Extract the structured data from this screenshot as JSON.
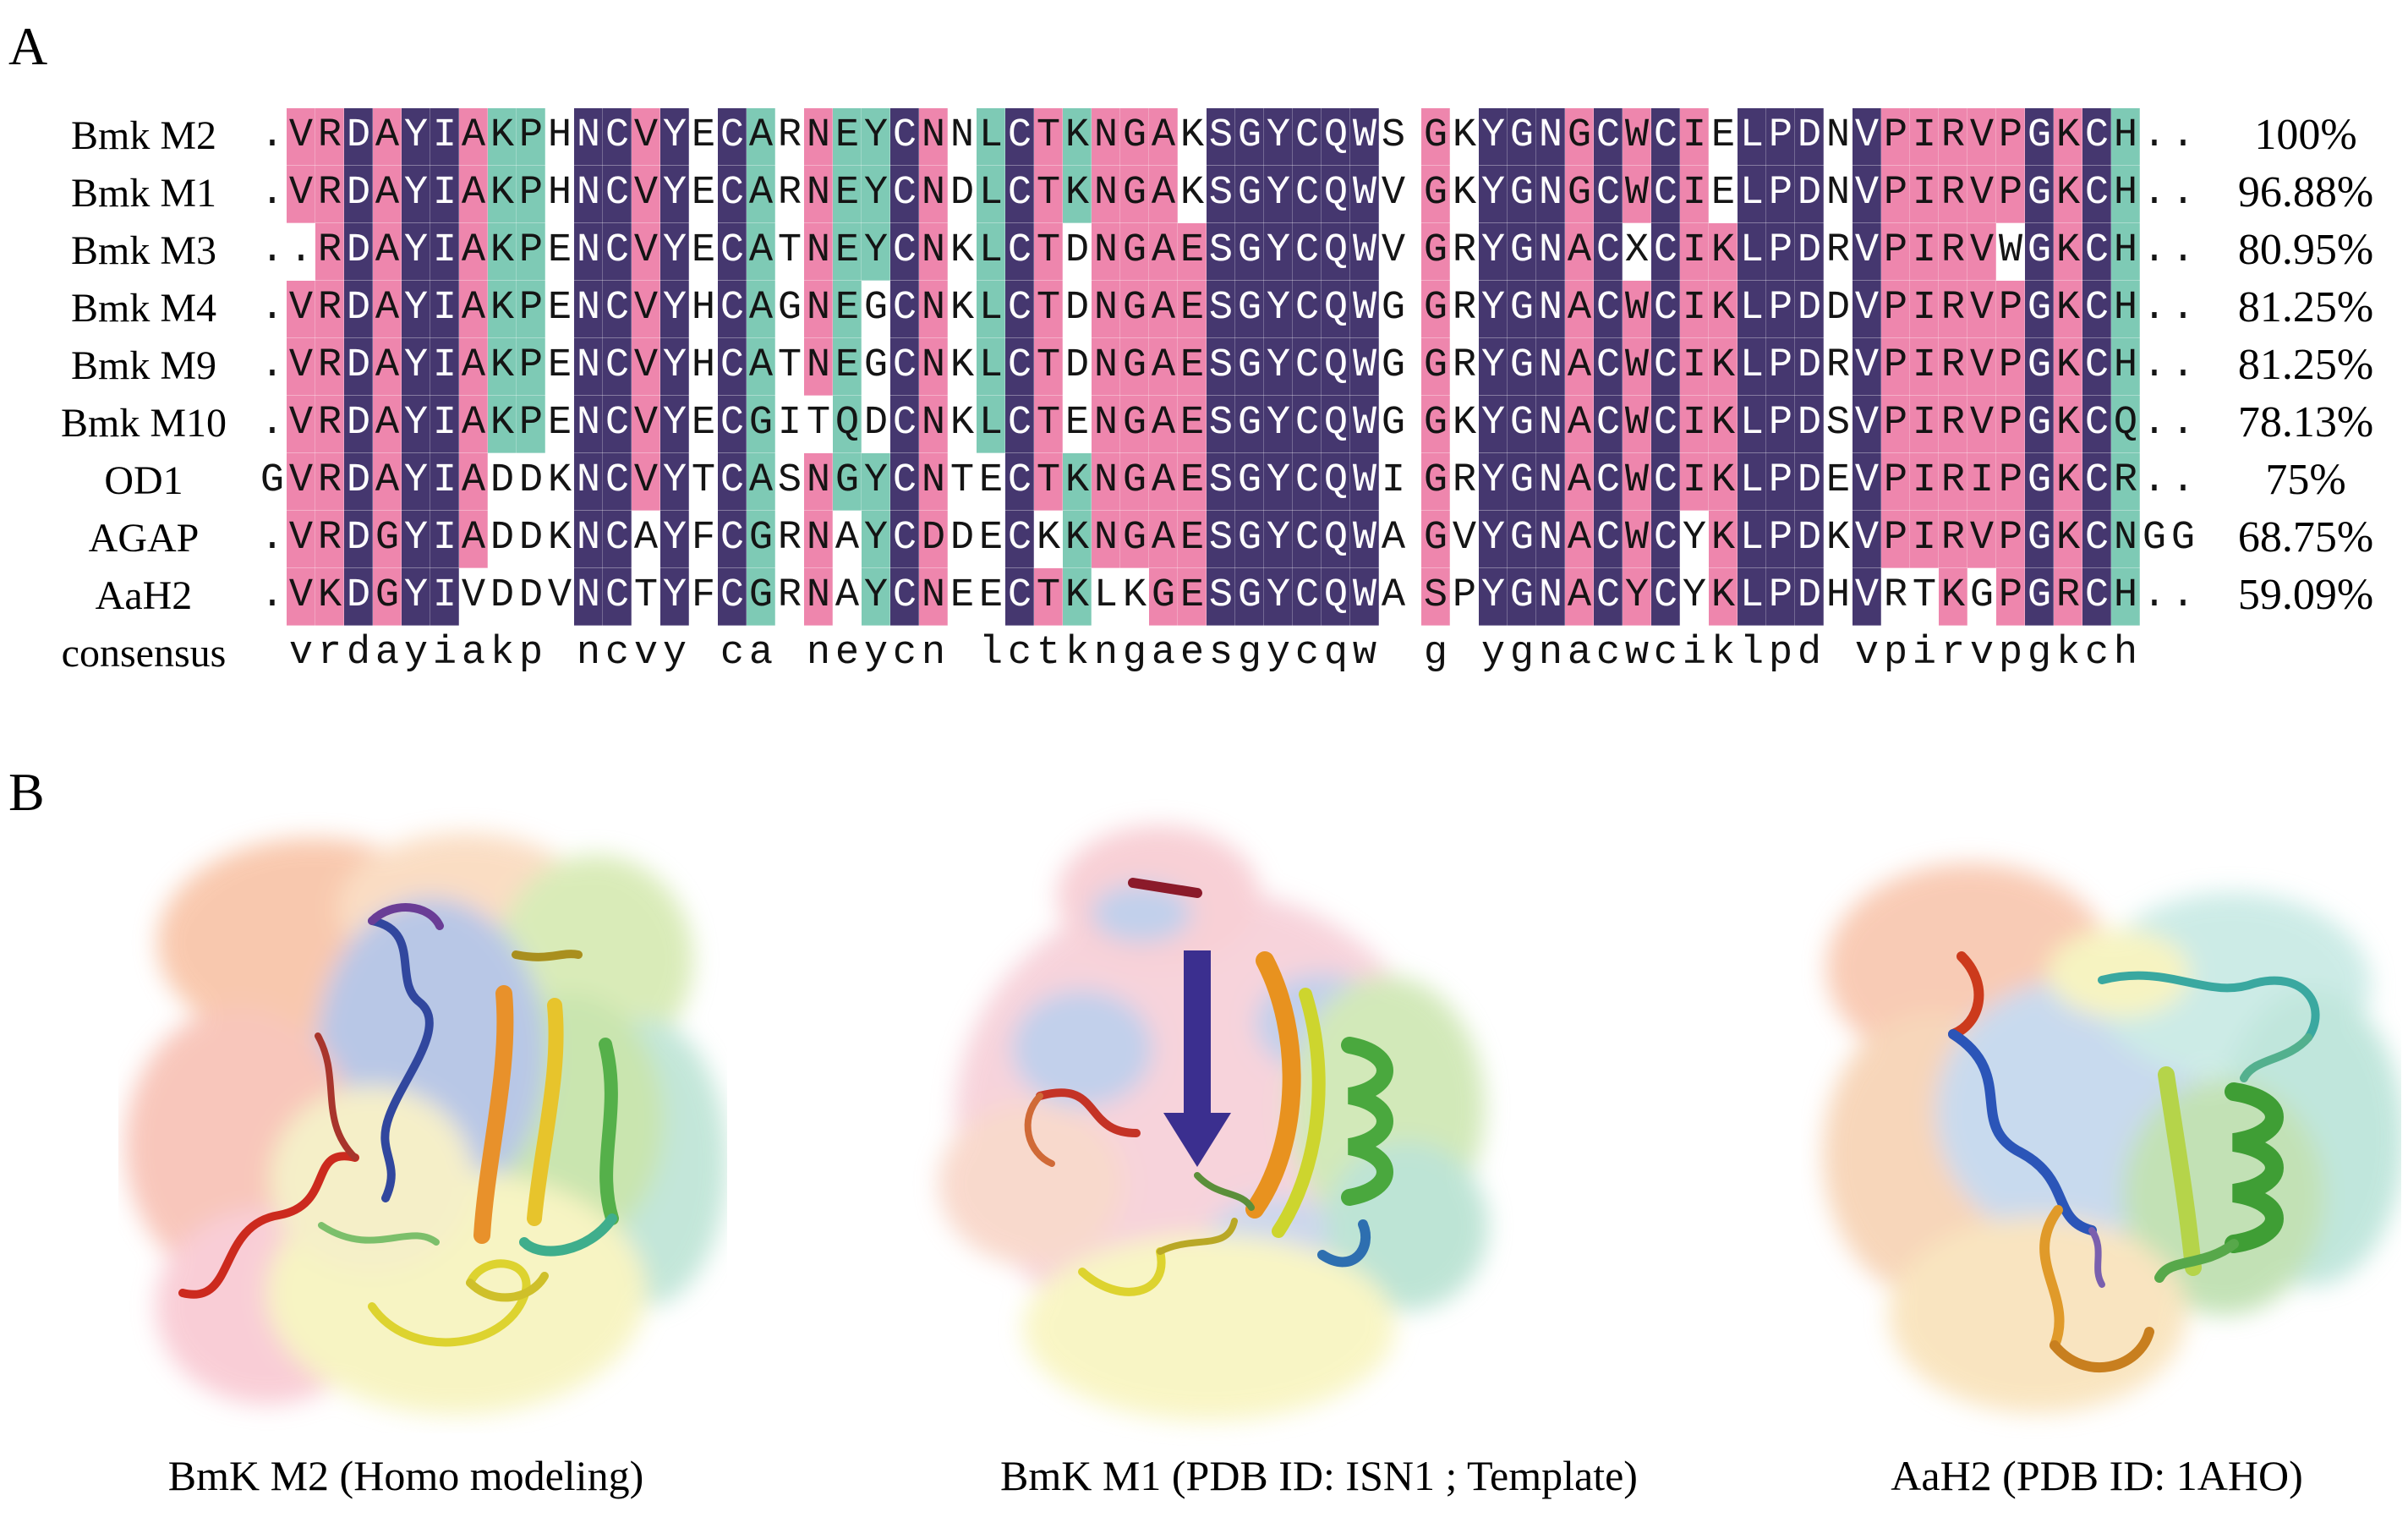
{
  "panels": {
    "a_label": "A",
    "b_label": "B"
  },
  "alignment": {
    "colors": {
      "identical": "#45376f",
      "conserved": "#ee86ad",
      "similar": "#7ecab5",
      "none": "#ffffff"
    },
    "gap_col": 40,
    "rows": [
      {
        "name": "Bmk M2",
        "identity": "100%",
        "seq": ".VRDAYIAKPHNCVYECARNEYCNNLCTKNGAKSGYCQWS GKYGNGCWCIELPDNVPIRVPGKCH..",
        "colors": "wppnpnnpttwnnpnwntwpttnpwtnptpppwnnnnnnwwpwnnnpnpnpwnnnwnpppppnpntww"
      },
      {
        "name": "Bmk M1",
        "identity": "96.88%",
        "seq": ".VRDAYIAKPHNCVYECARNEYCNDLCTKNGAKSGYCQWV GKYGNGCWCIELPDNVPIRVPGKCH..",
        "colors": "wppnpnnpttwnnpnwntwpttnpwtnptpppwnnnnnnwwpwnnnpnpnpwnnnwnpppppnpntww"
      },
      {
        "name": "Bmk M3",
        "identity": "80.95%",
        "seq": "..RDAYIAKPENCVYECATNEYCNKLCTDNGAESGYCQWV GRYGNACXCIKLPDRVPIRVWGKCH..",
        "colors": "wwpnpnnpttwnnpnwntwpttnpwtnpwppppnnnnnnwwpwnnnpnwnppnnnwnppppwnpntww"
      },
      {
        "name": "Bmk M4",
        "identity": "81.25%",
        "seq": ".VRDAYIAKPENCVYHCAGNEGCNKLCTDNGAESGYCQWG GRYGNACWCIKLPDDVPIRVPGKCH..",
        "colors": "wppnpnnpttwnnpnwntwptwnpwtnpwppppnnnnnnwwpwnnnpnpnppnnnwnpppppnpntww"
      },
      {
        "name": "Bmk M9",
        "identity": "81.25%",
        "seq": ".VRDAYIAKPENCVYHCATNEGCNKLCTDNGAESGYCQWG GRYGNACWCIKLPDRVPIRVPGKCH..",
        "colors": "wppnpnnpttwnnpnwntwptwnpwtnpwppppnnnnnnwwpwnnnpnpnppnnnwnpppppnpntww"
      },
      {
        "name": "Bmk M10",
        "identity": "78.13%",
        "seq": ".VRDAYIAKPENCVYECGITQDCNKLCTENGAESGYCQWG GKYGNACWCIKLPDSVPIRVPGKCQ..",
        "colors": "wppnpnnpttwnnpnwntwwtwnpwtnpwppppnnnnnnwwpwnnnpnpnppnnnwnpppppnpntww"
      },
      {
        "name": "OD1",
        "identity": "75%",
        "seq": "GVRDAYIADDKNCVYTCASNGYCNTECTKNGAESGYCQWI GRYGNACWCIKLPDEVPIRIPGKCR..",
        "colors": "wppnpnnpwwwnnpnwntwpttnpwwnptppppnnnnnnwwpwnnnpnpnppnnnwnpppppnpntww"
      },
      {
        "name": "AGAP",
        "identity": "68.75%",
        "seq": ".VRDGYIADDKNCAYFCGRNAYCDDECKKNGAESGYCQWA GVYGNACWCYKLPDKVPIRVPGKCNGG",
        "colors": "wppnpnnpwwwnnwnwntwpwtnpwwnwtppppnnnnnnwwpwnnnpnpnwpnnnwnpppppnpntww"
      },
      {
        "name": "AaH2",
        "identity": "59.09%",
        "seq": ".VKDGYIVDDVNCTYFCGRNAYCNEECTKLKGESGYCQWA SPYGNACYCYKLPDHVRTKGPGRCH..",
        "colors": "wppnpnnwwwwnnwnwntwpwtnpwwnptwwppnnnnnnwwpwnnnpnpnwpnnnwnwwpwpnpntww"
      },
      {
        "name": "consensus",
        "identity": "",
        "consensus": true,
        "seq": " vrdayiakp ncvy ca neycn lctkngaesgycqw  g ygnacwciklpd vpirvpgkch  ",
        "colors": "wwwwwwwwwwwwwwwwwwwwwwwwwwwwwwwwwwwwwwwwwwwwwwwwwwwwwwwwwwwwwwwwwwww"
      }
    ]
  },
  "structures": [
    {
      "caption": "BmK M2 (Homo modeling)"
    },
    {
      "caption": "BmK M1 (PDB ID: ISN1 ; Template)"
    },
    {
      "caption": "AaH2 (PDB ID: 1AHO)"
    }
  ]
}
